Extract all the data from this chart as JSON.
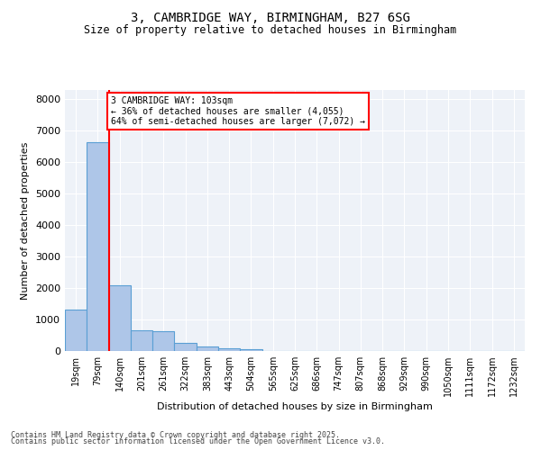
{
  "title1": "3, CAMBRIDGE WAY, BIRMINGHAM, B27 6SG",
  "title2": "Size of property relative to detached houses in Birmingham",
  "xlabel": "Distribution of detached houses by size in Birmingham",
  "ylabel": "Number of detached properties",
  "categories": [
    "19sqm",
    "79sqm",
    "140sqm",
    "201sqm",
    "261sqm",
    "322sqm",
    "383sqm",
    "443sqm",
    "504sqm",
    "565sqm",
    "625sqm",
    "686sqm",
    "747sqm",
    "807sqm",
    "868sqm",
    "929sqm",
    "990sqm",
    "1050sqm",
    "1111sqm",
    "1172sqm",
    "1232sqm"
  ],
  "values": [
    1310,
    6650,
    2100,
    650,
    640,
    270,
    130,
    100,
    55,
    0,
    0,
    0,
    0,
    0,
    0,
    0,
    0,
    0,
    0,
    0,
    0
  ],
  "bar_color": "#aec6e8",
  "bar_edge_color": "#5a9fd4",
  "vline_color": "red",
  "annotation_text": "3 CAMBRIDGE WAY: 103sqm\n← 36% of detached houses are smaller (4,055)\n64% of semi-detached houses are larger (7,072) →",
  "ylim": [
    0,
    8300
  ],
  "yticks": [
    0,
    1000,
    2000,
    3000,
    4000,
    5000,
    6000,
    7000,
    8000
  ],
  "background_color": "#eef2f8",
  "grid_color": "white",
  "footer1": "Contains HM Land Registry data © Crown copyright and database right 2025.",
  "footer2": "Contains public sector information licensed under the Open Government Licence v3.0."
}
